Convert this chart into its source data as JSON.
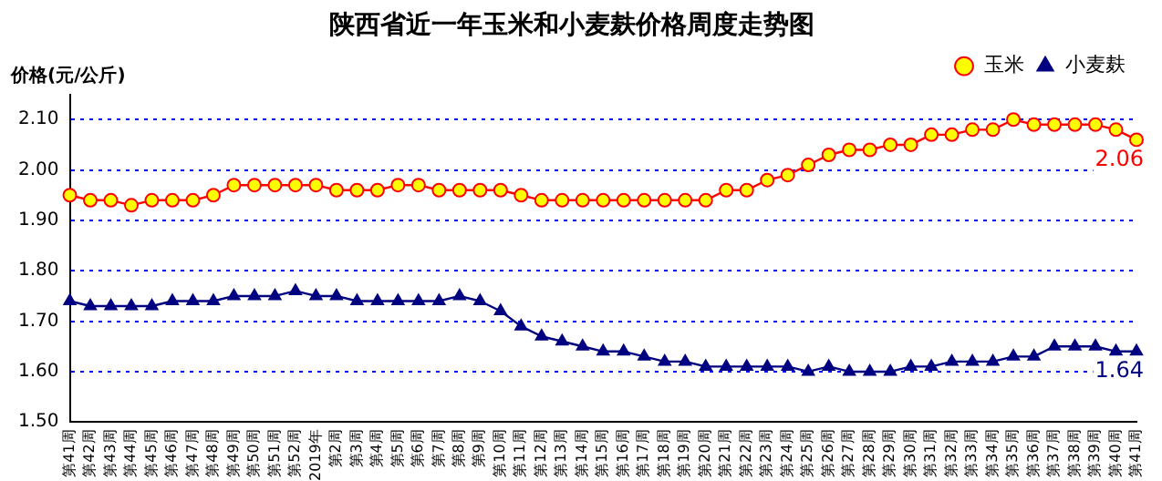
{
  "chart_data": {
    "type": "line",
    "title": "陕西省近一年玉米和小麦麸价格周度走势图",
    "ylabel": "价格(元/公斤)",
    "categories": [
      "第41周",
      "第42周",
      "第43周",
      "第44周",
      "第45周",
      "第46周",
      "第47周",
      "第48周",
      "第49周",
      "第50周",
      "第51周",
      "第52周",
      "2019年",
      "第2周",
      "第3周",
      "第4周",
      "第5周",
      "第6周",
      "第7周",
      "第8周",
      "第9周",
      "第10周",
      "第11周",
      "第12周",
      "第13周",
      "第14周",
      "第15周",
      "第16周",
      "第17周",
      "第18周",
      "第19周",
      "第20周",
      "第21周",
      "第22周",
      "第23周",
      "第24周",
      "第25周",
      "第26周",
      "第27周",
      "第28周",
      "第29周",
      "第30周",
      "第31周",
      "第32周",
      "第33周",
      "第34周",
      "第35周",
      "第36周",
      "第37周",
      "第38周",
      "第39周",
      "第40周",
      "第41周"
    ],
    "series": [
      {
        "name": "玉米",
        "color": "#ff0000",
        "marker": "circle",
        "values": [
          1.95,
          1.94,
          1.94,
          1.93,
          1.94,
          1.94,
          1.94,
          1.95,
          1.97,
          1.97,
          1.97,
          1.97,
          1.97,
          1.96,
          1.96,
          1.96,
          1.97,
          1.97,
          1.96,
          1.96,
          1.96,
          1.96,
          1.95,
          1.94,
          1.94,
          1.94,
          1.94,
          1.94,
          1.94,
          1.94,
          1.94,
          1.94,
          1.96,
          1.96,
          1.98,
          1.99,
          2.01,
          2.03,
          2.04,
          2.04,
          2.05,
          2.05,
          2.07,
          2.07,
          2.08,
          2.08,
          2.1,
          2.09,
          2.09,
          2.09,
          2.09,
          2.08,
          2.06
        ],
        "value_labels": [
          null,
          null,
          null,
          null,
          null,
          null,
          null,
          null,
          null,
          null,
          null,
          null,
          null,
          null,
          null,
          null,
          null,
          null,
          null,
          null,
          null,
          null,
          null,
          null,
          null,
          null,
          null,
          null,
          null,
          null,
          null,
          null,
          null,
          null,
          null,
          null,
          null,
          null,
          null,
          null,
          null,
          null,
          null,
          null,
          null,
          null,
          null,
          null,
          null,
          null,
          null,
          null,
          "2.06"
        ]
      },
      {
        "name": "小麦麸",
        "color": "#000080",
        "marker": "triangle",
        "values": [
          1.74,
          1.73,
          1.73,
          1.73,
          1.73,
          1.74,
          1.74,
          1.74,
          1.75,
          1.75,
          1.75,
          1.76,
          1.75,
          1.75,
          1.74,
          1.74,
          1.74,
          1.74,
          1.74,
          1.75,
          1.74,
          1.72,
          1.69,
          1.67,
          1.66,
          1.65,
          1.64,
          1.64,
          1.63,
          1.62,
          1.62,
          1.61,
          1.61,
          1.61,
          1.61,
          1.61,
          1.6,
          1.61,
          1.6,
          1.6,
          1.6,
          1.61,
          1.61,
          1.62,
          1.62,
          1.62,
          1.63,
          1.63,
          1.65,
          1.65,
          1.65,
          1.64,
          1.64
        ],
        "value_labels": [
          null,
          null,
          null,
          null,
          null,
          null,
          null,
          null,
          null,
          null,
          null,
          null,
          null,
          null,
          null,
          null,
          null,
          null,
          null,
          null,
          null,
          null,
          null,
          null,
          null,
          null,
          null,
          null,
          null,
          null,
          null,
          null,
          null,
          null,
          null,
          null,
          null,
          null,
          null,
          null,
          null,
          null,
          null,
          null,
          null,
          null,
          null,
          null,
          null,
          null,
          null,
          null,
          "1.64"
        ]
      }
    ],
    "ylim": [
      1.5,
      2.15
    ],
    "yticks": [
      {
        "value": 1.5,
        "label": "1.50"
      },
      {
        "value": 1.6,
        "label": "1.60"
      },
      {
        "value": 1.7,
        "label": "1.70"
      },
      {
        "value": 1.8,
        "label": "1.80"
      },
      {
        "value": 1.9,
        "label": "1.90"
      },
      {
        "value": 2.0,
        "label": "2.00"
      },
      {
        "value": 2.1,
        "label": "2.10"
      }
    ],
    "grid": "y",
    "legend": "top right",
    "line_style": "solid"
  }
}
